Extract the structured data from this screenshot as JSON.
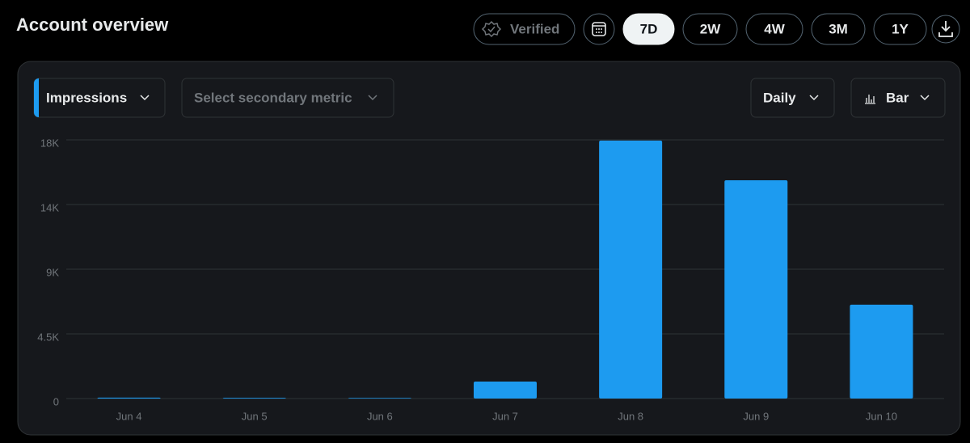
{
  "header": {
    "title": "Account overview"
  },
  "controls": {
    "verified": "Verified",
    "ranges": [
      {
        "label": "7D",
        "selected": true
      },
      {
        "label": "2W",
        "selected": false
      },
      {
        "label": "4W",
        "selected": false
      },
      {
        "label": "3M",
        "selected": false
      },
      {
        "label": "1Y",
        "selected": false
      }
    ]
  },
  "toolbar": {
    "primary_metric": "Impressions",
    "secondary_metric_placeholder": "Select secondary metric",
    "interval": "Daily",
    "chart_style": "Bar"
  },
  "chart_data": {
    "type": "bar",
    "categories": [
      "Jun 4",
      "Jun 5",
      "Jun 6",
      "Jun 7",
      "Jun 8",
      "Jun 9",
      "Jun 10"
    ],
    "values": [
      60,
      50,
      40,
      1180,
      17950,
      15190,
      6530
    ],
    "color": "#1d9bf0",
    "ylim": [
      0,
      18000
    ],
    "yticks": [
      0,
      {
        "value": 4500,
        "label": "4.5K"
      },
      {
        "value": 9000,
        "label": "9K"
      },
      {
        "value": 13500,
        "label": "14K"
      },
      {
        "value": 18000,
        "label": "18K"
      }
    ],
    "grid": true
  }
}
